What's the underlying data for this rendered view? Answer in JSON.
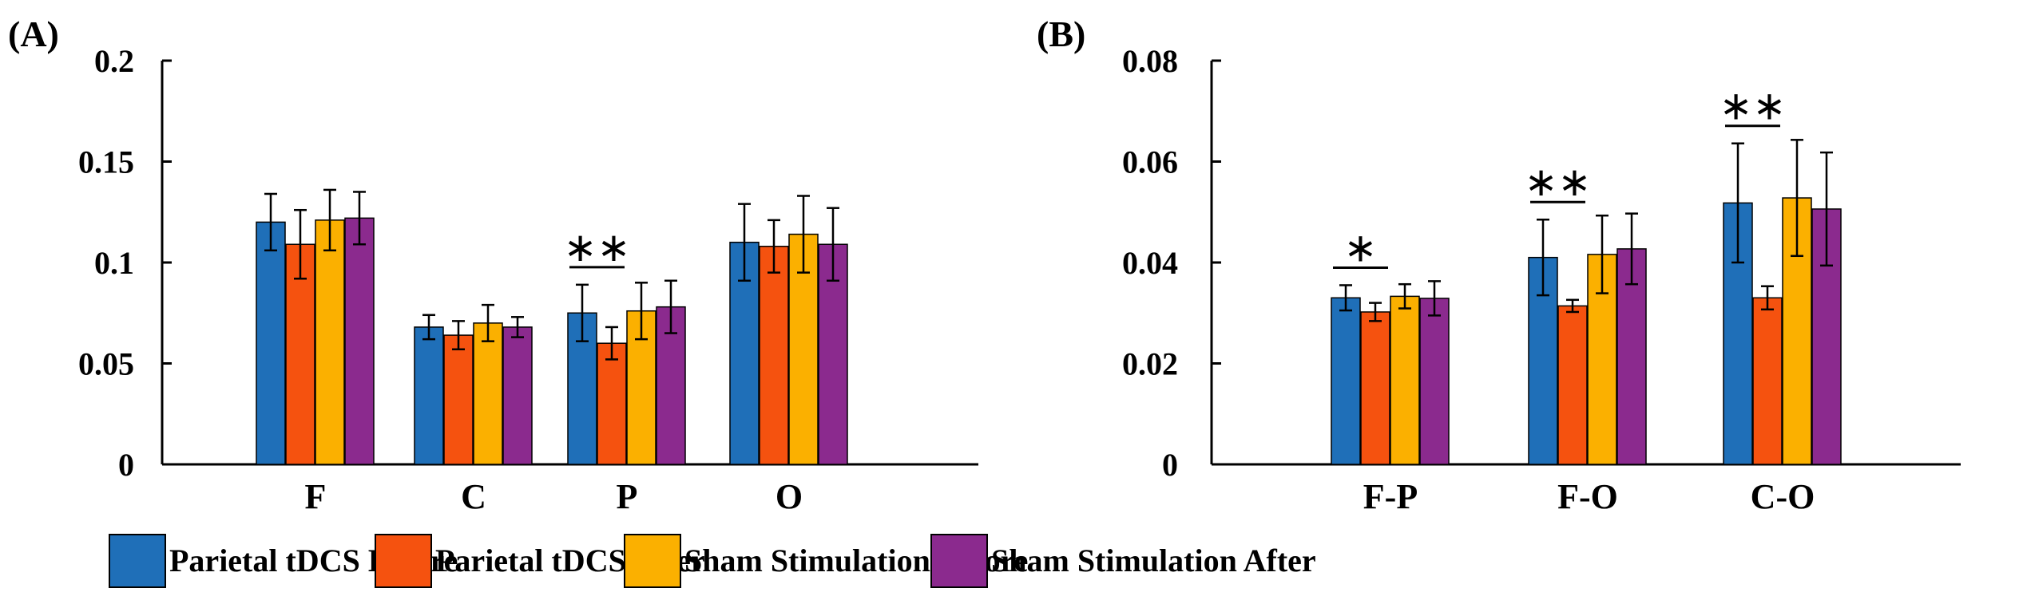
{
  "legend": [
    {
      "label": "Parietal tDCS Before",
      "color": "#1f6fb8"
    },
    {
      "label": "Parietal tDCS After",
      "color": "#f5520f"
    },
    {
      "label": "Sham Stimulation Before",
      "color": "#fbb000"
    },
    {
      "label": "Sham Stimulation After",
      "color": "#8b2a8e"
    }
  ],
  "chart_data": [
    {
      "type": "bar",
      "panel": "(A)",
      "categories": [
        "F",
        "C",
        "P",
        "O"
      ],
      "ylim": [
        0,
        0.2
      ],
      "yticks": [
        "0",
        "0.05",
        "0.1",
        "0.15",
        "0.2"
      ],
      "series": [
        {
          "name": "Parietal tDCS Before",
          "values": [
            0.12,
            0.068,
            0.075,
            0.11
          ],
          "errors": [
            0.014,
            0.006,
            0.014,
            0.019
          ]
        },
        {
          "name": "Parietal tDCS After",
          "values": [
            0.109,
            0.064,
            0.06,
            0.108
          ],
          "errors": [
            0.017,
            0.007,
            0.008,
            0.013
          ]
        },
        {
          "name": "Sham Stimulation Before",
          "values": [
            0.121,
            0.07,
            0.076,
            0.114
          ],
          "errors": [
            0.015,
            0.009,
            0.014,
            0.019
          ]
        },
        {
          "name": "Sham Stimulation After",
          "values": [
            0.122,
            0.068,
            0.078,
            0.109
          ],
          "errors": [
            0.013,
            0.005,
            0.013,
            0.018
          ]
        }
      ],
      "significance": [
        {
          "category": "P",
          "label": "**"
        }
      ]
    },
    {
      "type": "bar",
      "panel": "(B)",
      "categories": [
        "F-P",
        "F-O",
        "C-O"
      ],
      "ylim": [
        0,
        0.08
      ],
      "yticks": [
        "0",
        "0.02",
        "0.04",
        "0.06",
        "0.08"
      ],
      "series": [
        {
          "name": "Parietal tDCS Before",
          "values": [
            0.033,
            0.041,
            0.0518
          ],
          "errors": [
            0.0025,
            0.0075,
            0.0118
          ]
        },
        {
          "name": "Parietal tDCS After",
          "values": [
            0.0302,
            0.0314,
            0.033
          ],
          "errors": [
            0.0018,
            0.0012,
            0.0023
          ]
        },
        {
          "name": "Sham Stimulation Before",
          "values": [
            0.0333,
            0.0416,
            0.0528
          ],
          "errors": [
            0.0024,
            0.0077,
            0.0115
          ]
        },
        {
          "name": "Sham Stimulation After",
          "values": [
            0.0329,
            0.0427,
            0.0506
          ],
          "errors": [
            0.0034,
            0.007,
            0.0112
          ]
        }
      ],
      "significance": [
        {
          "category": "F-P",
          "label": "*"
        },
        {
          "category": "F-O",
          "label": "**"
        },
        {
          "category": "C-O",
          "label": "**"
        }
      ]
    }
  ]
}
